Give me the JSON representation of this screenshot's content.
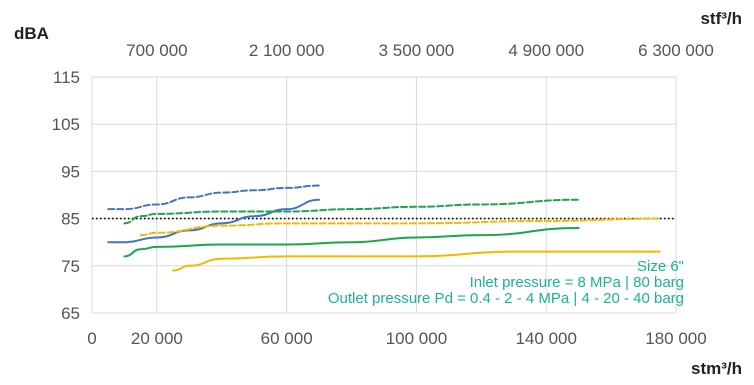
{
  "chart_data": {
    "type": "line",
    "ylabel": "dBA",
    "xlabel": "stm³/h",
    "x2label": "stf³/h",
    "xlim": [
      0,
      180000
    ],
    "ylim": [
      65,
      115
    ],
    "x_ticks": [
      0,
      20000,
      60000,
      100000,
      140000,
      180000
    ],
    "x_tick_labels": [
      "0",
      "20 000",
      "60 000",
      "100 000",
      "140 000",
      "180 000"
    ],
    "y_ticks": [
      65,
      75,
      85,
      95,
      105,
      115
    ],
    "y_tick_labels": [
      "65",
      "75",
      "85",
      "95",
      "105",
      "115"
    ],
    "x2_tick_labels": [
      "700 000",
      "2 100 000",
      "3 500 000",
      "4 900 000",
      "6 300 000"
    ],
    "grid": true,
    "reference_line": {
      "y": 85,
      "color": "#000000"
    },
    "series": [
      {
        "color": "#4472c4",
        "dash": true,
        "x": [
          5000,
          10000,
          20000,
          30000,
          40000,
          50000,
          60000,
          70000
        ],
        "y": [
          87,
          87,
          88,
          89.5,
          90.5,
          91,
          91.5,
          92
        ]
      },
      {
        "color": "#4472c4",
        "dash": false,
        "x": [
          5000,
          10000,
          20000,
          30000,
          40000,
          50000,
          60000,
          70000
        ],
        "y": [
          80,
          80,
          81,
          82.5,
          84,
          85.5,
          87,
          89
        ]
      },
      {
        "color": "#1aa64a",
        "dash": true,
        "x": [
          10000,
          15000,
          20000,
          40000,
          60000,
          80000,
          100000,
          120000,
          150000
        ],
        "y": [
          84,
          85.5,
          86,
          86.5,
          86.5,
          87,
          87.5,
          88,
          89
        ]
      },
      {
        "color": "#1aa64a",
        "dash": false,
        "x": [
          10000,
          15000,
          20000,
          40000,
          60000,
          80000,
          100000,
          120000,
          150000
        ],
        "y": [
          77,
          78.5,
          79,
          79.5,
          79.5,
          80,
          81,
          81.5,
          83
        ]
      },
      {
        "color": "#f5b800",
        "dash": true,
        "x": [
          15000,
          20000,
          40000,
          60000,
          80000,
          100000,
          140000,
          175000
        ],
        "y": [
          81.5,
          82,
          83.5,
          84,
          84,
          84,
          84.5,
          85
        ]
      },
      {
        "color": "#f5b800",
        "dash": false,
        "x": [
          25000,
          30000,
          40000,
          60000,
          80000,
          100000,
          130000,
          150000,
          175000
        ],
        "y": [
          74,
          75,
          76.5,
          77,
          77,
          77,
          78,
          78,
          78
        ]
      }
    ],
    "annotations": [
      "Size 6\"",
      "Inlet pressure = 8 MPa | 80 barg",
      "Outlet pressure Pd = 0.4 - 2 - 4 MPa | 4 - 20 - 40 barg"
    ]
  }
}
